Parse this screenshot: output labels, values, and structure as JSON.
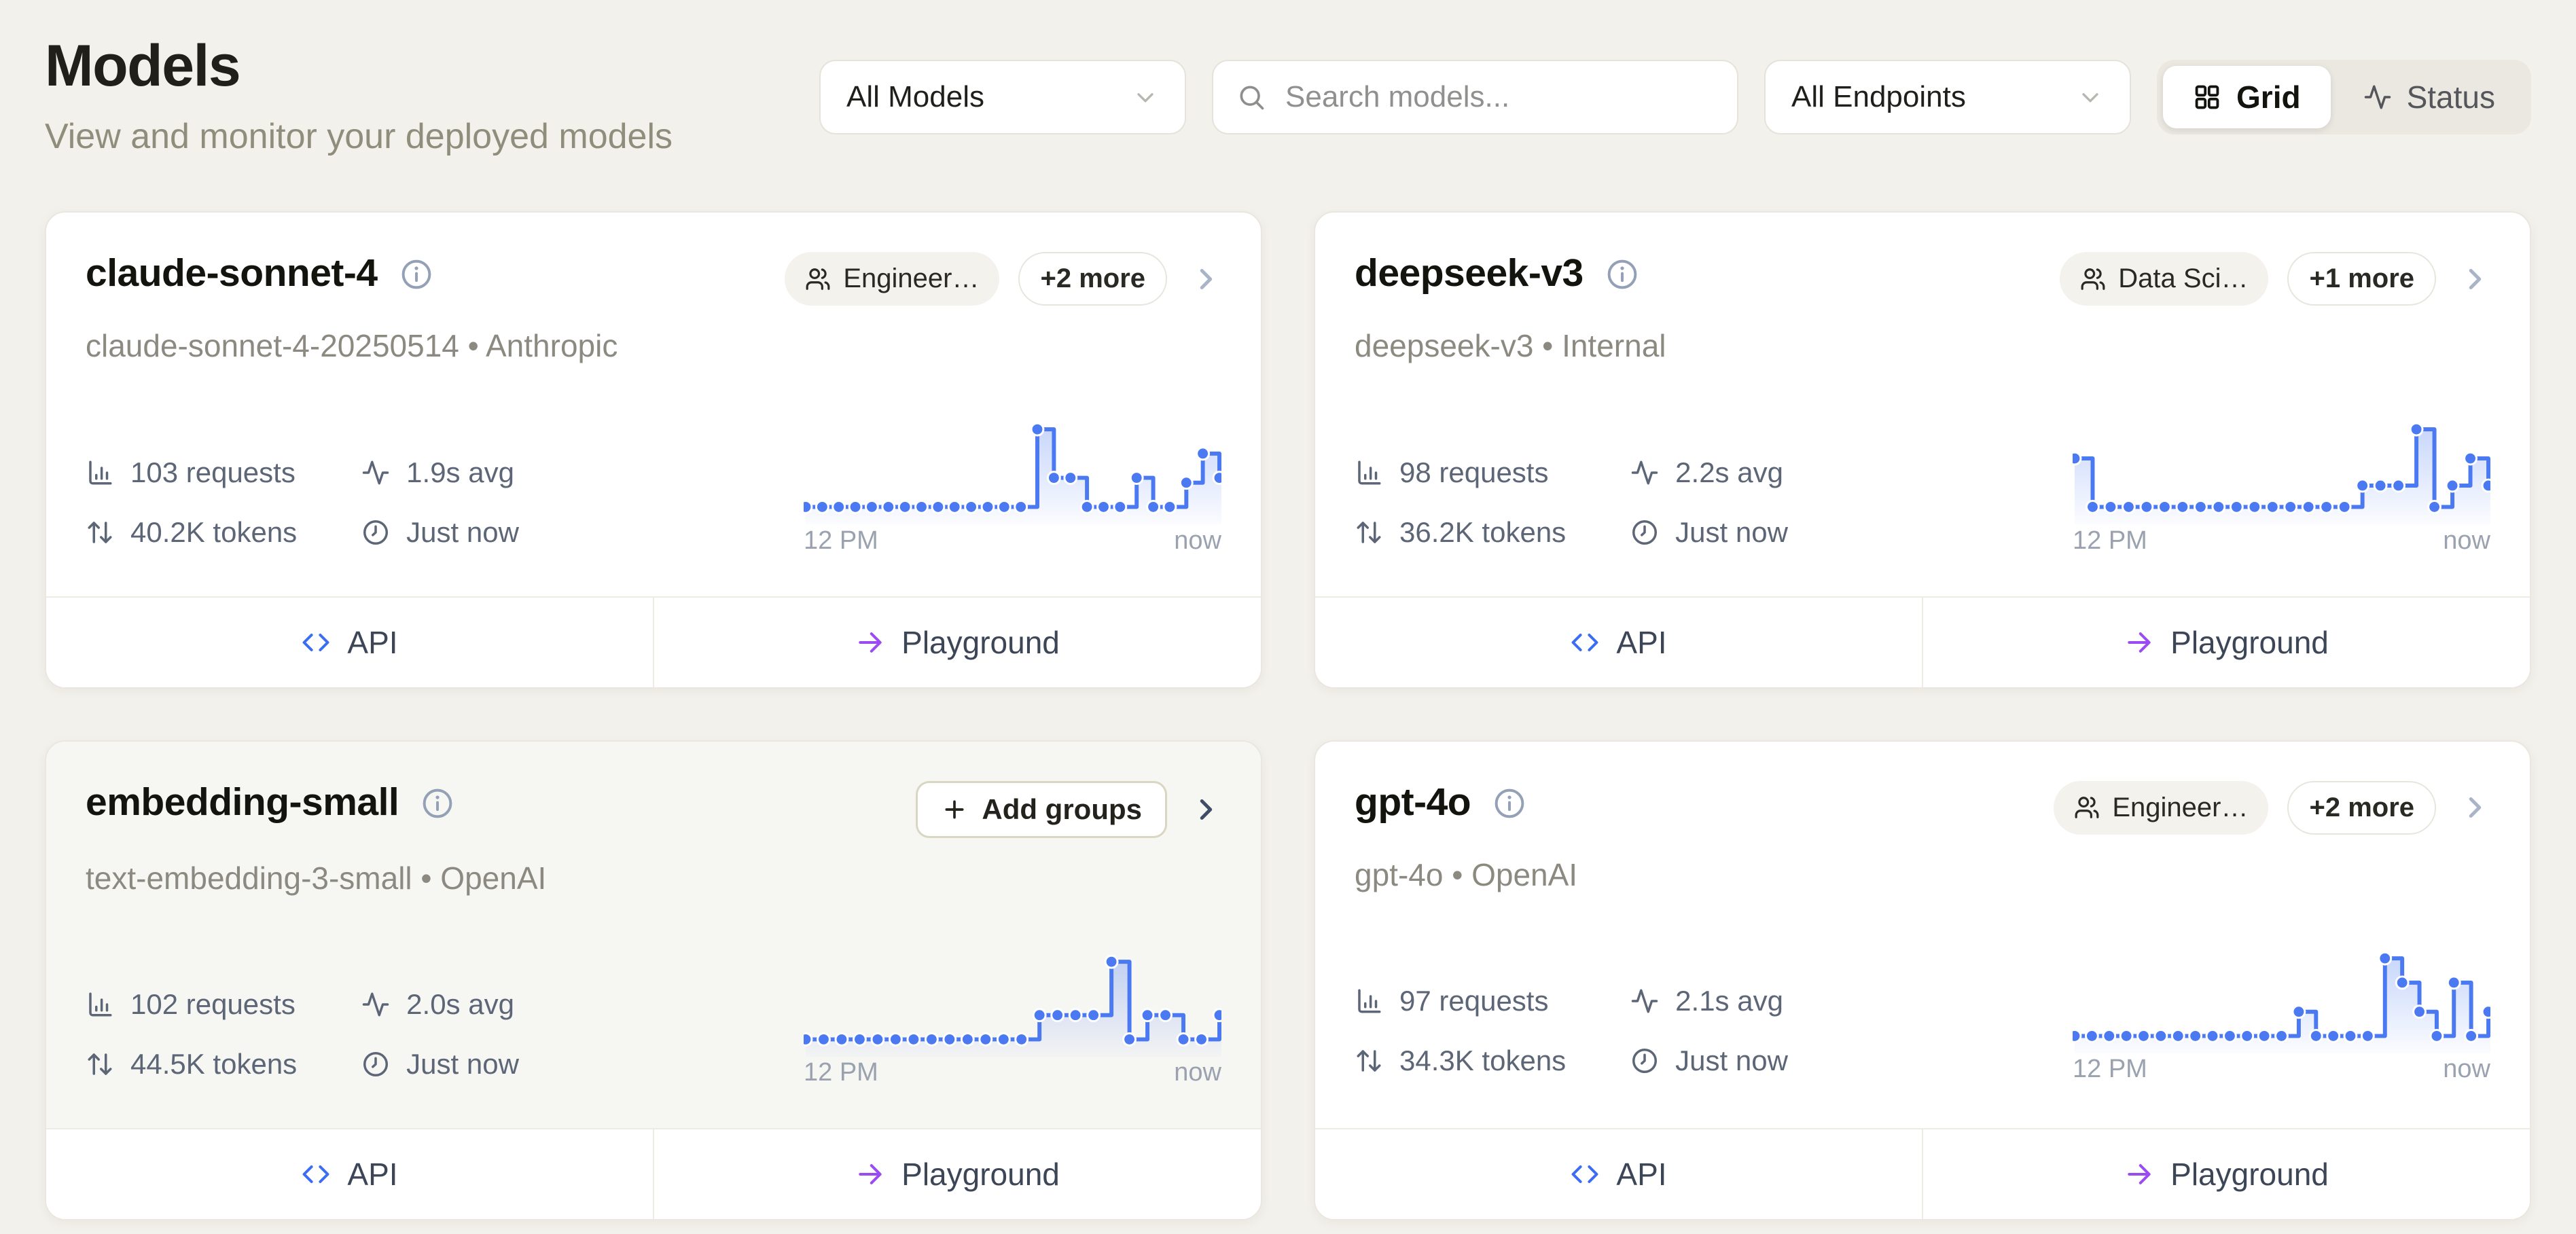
{
  "page": {
    "title": "Models",
    "subtitle": "View and monitor your deployed models"
  },
  "filters": {
    "models": {
      "value": "All Models"
    },
    "search": {
      "placeholder": "Search models..."
    },
    "endpoints": {
      "value": "All Endpoints"
    },
    "view": {
      "grid": "Grid",
      "status": "Status",
      "active": "Grid"
    }
  },
  "icons": {
    "search": "magnifier",
    "chevron_down": "chevron-down",
    "grid": "2x2-squares",
    "status": "pulse-line",
    "users": "two-people",
    "info": "circled-i",
    "requests": "bar-chart-axis",
    "latency": "pulse-line",
    "tokens": "up-down-arrows",
    "updated": "clock",
    "api": "angle-brackets",
    "playground": "arrow-right",
    "chevron_right": "chevron-right",
    "add": "plus"
  },
  "colors": {
    "accent_blue": "#4a79f1",
    "accent_purple": "#9a4cf2",
    "page_bg": "#f3f1eb",
    "card_bg": "#ffffff",
    "hover_card_bg": "#f6f6f3",
    "stat_text": "#5d6677",
    "muted_text": "#8c8a80"
  },
  "cards": [
    {
      "title": "claude-sonnet-4",
      "subtitle": "claude-sonnet-4-20250514 • Anthropic",
      "badge": "Engineer…",
      "more": "+2 more",
      "requests": "103 requests",
      "avg": "1.9s avg",
      "tokens": "40.2K tokens",
      "updated": "Just now",
      "api": "API",
      "playground": "Playground"
    },
    {
      "title": "deepseek-v3",
      "subtitle": "deepseek-v3 • Internal",
      "badge": "Data Sci…",
      "more": "+1 more",
      "requests": "98 requests",
      "avg": "2.2s avg",
      "tokens": "36.2K tokens",
      "updated": "Just now",
      "api": "API",
      "playground": "Playground"
    },
    {
      "title": "embedding-small",
      "subtitle": "text-embedding-3-small • OpenAI",
      "add_groups": "Add groups",
      "requests": "102 requests",
      "avg": "2.0s avg",
      "tokens": "44.5K tokens",
      "updated": "Just now",
      "api": "API",
      "playground": "Playground"
    },
    {
      "title": "gpt-4o",
      "subtitle": "gpt-4o • OpenAI",
      "badge": "Engineer…",
      "more": "+2 more",
      "requests": "97 requests",
      "avg": "2.1s avg",
      "tokens": "34.3K tokens",
      "updated": "Just now",
      "api": "API",
      "playground": "Playground"
    }
  ],
  "chart_data": [
    {
      "type": "line",
      "style": "step-after-sparkline",
      "title": "claude-sonnet-4 request volume",
      "x_start": "12 PM",
      "x_end": "now",
      "ylim": [
        0,
        10
      ],
      "color": "#4a79f1",
      "values": [
        1,
        1,
        1,
        1,
        1,
        1,
        1,
        1,
        1,
        1,
        1,
        1,
        1,
        1,
        9,
        4,
        4,
        1,
        1,
        1,
        4,
        1,
        1,
        3.5,
        6.5,
        4
      ]
    },
    {
      "type": "line",
      "style": "step-after-sparkline",
      "title": "deepseek-v3 request volume",
      "x_start": "12 PM",
      "x_end": "now",
      "ylim": [
        0,
        10
      ],
      "color": "#4a79f1",
      "values": [
        6,
        1,
        1,
        1,
        1,
        1,
        1,
        1,
        1,
        1,
        1,
        1,
        1,
        1,
        1,
        1,
        3.2,
        3.2,
        3.2,
        9,
        1,
        3.2,
        6,
        3.2
      ]
    },
    {
      "type": "line",
      "style": "step-after-sparkline",
      "title": "embedding-small request volume",
      "x_start": "12 PM",
      "x_end": "now",
      "ylim": [
        0,
        10
      ],
      "color": "#4a79f1",
      "values": [
        1,
        1,
        1,
        1,
        1,
        1,
        1,
        1,
        1,
        1,
        1,
        1,
        1,
        3.5,
        3.5,
        3.5,
        3.5,
        9,
        1,
        3.5,
        3.5,
        1,
        1,
        3.5
      ]
    },
    {
      "type": "line",
      "style": "step-after-sparkline",
      "title": "gpt-4o request volume",
      "x_start": "12 PM",
      "x_end": "now",
      "ylim": [
        0,
        10
      ],
      "color": "#4a79f1",
      "values": [
        1,
        1,
        1,
        1,
        1,
        1,
        1,
        1,
        1,
        1,
        1,
        1,
        1,
        3.5,
        1,
        1,
        1,
        1,
        9,
        6.5,
        3.5,
        1,
        6.5,
        1,
        3.5
      ]
    }
  ]
}
